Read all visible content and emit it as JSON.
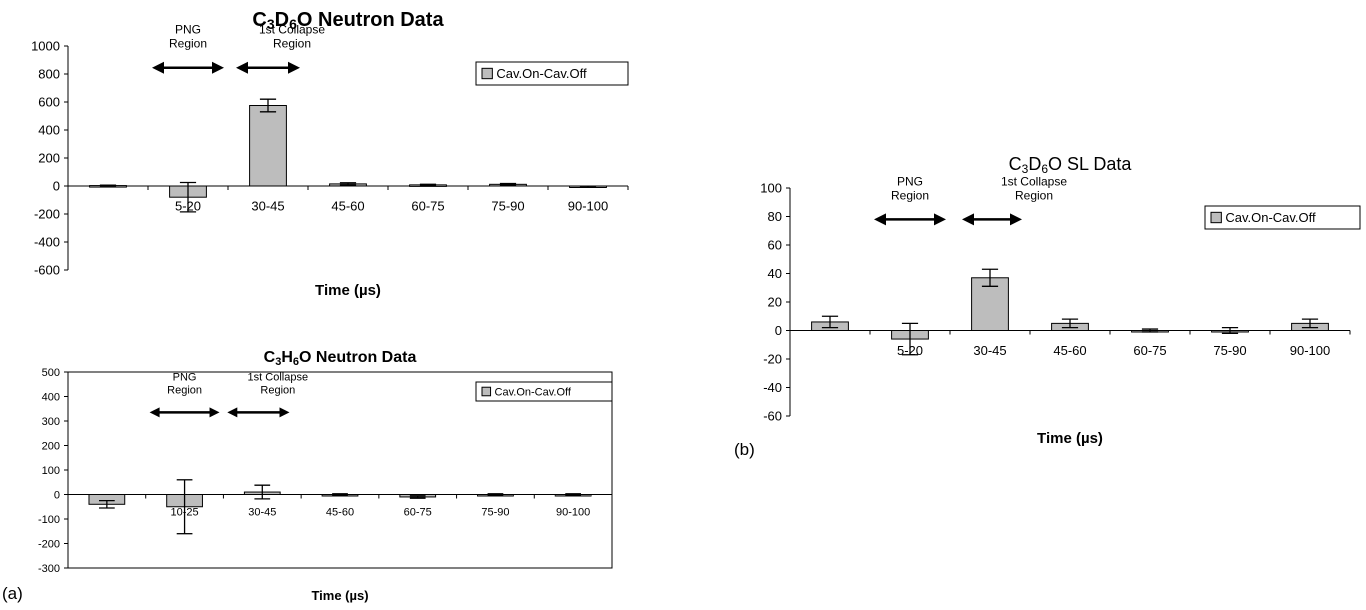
{
  "panel_labels": {
    "a": "(a)",
    "b": "(b)"
  },
  "chart_data": [
    {
      "type": "bar",
      "title_parts": [
        "C",
        "3",
        "D",
        "6",
        "O Neutron Data"
      ],
      "xlabel": "Time (µs)",
      "ylabel": "",
      "ylim": [
        -600,
        1000
      ],
      "yticks": [
        -600,
        -400,
        -200,
        0,
        200,
        400,
        600,
        800,
        1000
      ],
      "grid": false,
      "legend_position": "top-right",
      "categories": [
        "",
        "5-20",
        "30-45",
        "45-60",
        "60-75",
        "75-90",
        "90-100"
      ],
      "series": [
        {
          "name": "Cav.On-Cav.Off",
          "color": "#bdbdbd",
          "values": [
            3,
            -80,
            575,
            15,
            8,
            12,
            -6
          ],
          "errors": [
            3,
            105,
            45,
            8,
            4,
            6,
            4
          ]
        }
      ],
      "annotations": [
        {
          "lines": [
            "PNG",
            "Region"
          ],
          "arrow_from": 0.55,
          "arrow_to": 1.45,
          "arrow_y": 845,
          "text_center": 1.0
        },
        {
          "lines": [
            "1st Collapse",
            "Region"
          ],
          "arrow_from": 1.6,
          "arrow_to": 2.4,
          "arrow_y": 845,
          "text_center": 2.3
        }
      ]
    },
    {
      "type": "bar",
      "title_parts": [
        "C",
        "3",
        "H",
        "6",
        "O Neutron Data"
      ],
      "xlabel": "Time (µs)",
      "ylabel": "",
      "ylim": [
        -300,
        500
      ],
      "yticks": [
        -300,
        -200,
        -100,
        0,
        100,
        200,
        300,
        400,
        500
      ],
      "grid": false,
      "legend_position": "top-right",
      "categories": [
        "",
        "10-25",
        "30-45",
        "45-60",
        "60-75",
        "75-90",
        "90-100"
      ],
      "series": [
        {
          "name": "Cav.On-Cav.Off",
          "color": "#bdbdbd",
          "values": [
            -40,
            -50,
            10,
            0,
            -10,
            0,
            0
          ],
          "errors": [
            15,
            110,
            28,
            3,
            5,
            3,
            3
          ]
        }
      ],
      "annotations": [
        {
          "lines": [
            "PNG",
            "Region"
          ],
          "arrow_from": 0.55,
          "arrow_to": 1.45,
          "arrow_y": 335,
          "text_center": 1.0
        },
        {
          "lines": [
            "1st Collapse",
            "Region"
          ],
          "arrow_from": 1.55,
          "arrow_to": 2.35,
          "arrow_y": 335,
          "text_center": 2.2
        }
      ]
    },
    {
      "type": "bar",
      "title_parts": [
        "C",
        "3",
        "D",
        "6",
        "O SL Data"
      ],
      "xlabel": "Time (µs)",
      "ylabel": "",
      "ylim": [
        -60,
        100
      ],
      "yticks": [
        -60,
        -40,
        -20,
        0,
        20,
        40,
        60,
        80,
        100
      ],
      "grid": false,
      "legend_position": "top-right",
      "categories": [
        "",
        "5-20",
        "30-45",
        "45-60",
        "60-75",
        "75-90",
        "90-100"
      ],
      "series": [
        {
          "name": "Cav.On-Cav.Off",
          "color": "#bdbdbd",
          "values": [
            6,
            -6,
            37,
            5,
            0,
            0,
            5
          ],
          "errors": [
            4,
            11,
            6,
            3,
            1,
            2,
            3
          ]
        }
      ],
      "annotations": [
        {
          "lines": [
            "PNG",
            "Region"
          ],
          "arrow_from": 0.55,
          "arrow_to": 1.45,
          "arrow_y": 78,
          "text_center": 1.0
        },
        {
          "lines": [
            "1st Collapse",
            "Region"
          ],
          "arrow_from": 1.65,
          "arrow_to": 2.4,
          "arrow_y": 78,
          "text_center": 2.55
        }
      ]
    }
  ]
}
